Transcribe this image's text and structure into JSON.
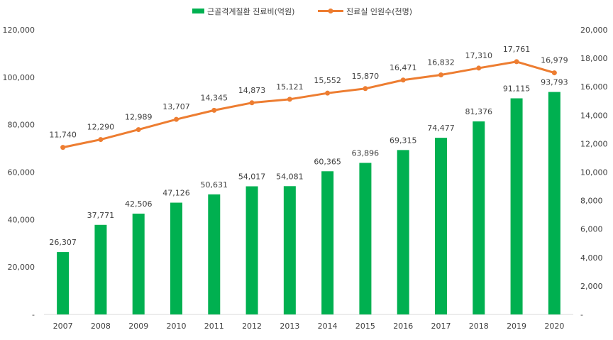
{
  "chart_data": {
    "type": "bar",
    "categories": [
      "2007",
      "2008",
      "2009",
      "2010",
      "2011",
      "2012",
      "2013",
      "2014",
      "2015",
      "2016",
      "2017",
      "2018",
      "2019",
      "2020"
    ],
    "series": [
      {
        "name": "근골격계질환 진료비(억원)",
        "type": "bar",
        "axis": "left",
        "color": "#00B050",
        "values": [
          26307,
          37771,
          42506,
          47126,
          50631,
          54017,
          54081,
          60365,
          63896,
          69315,
          74477,
          81376,
          91115,
          93793
        ],
        "labels": [
          "26,307",
          "37,771",
          "42,506",
          "47,126",
          "50,631",
          "54,017",
          "54,081",
          "60,365",
          "63,896",
          "69,315",
          "74,477",
          "81,376",
          "91,115",
          "93,793"
        ]
      },
      {
        "name": "진료실 인원수(천명)",
        "type": "line",
        "axis": "right",
        "color": "#ED7D31",
        "values": [
          11740,
          12290,
          12989,
          13707,
          14345,
          14873,
          15121,
          15552,
          15870,
          16471,
          16832,
          17310,
          17761,
          16979
        ],
        "labels": [
          "11,740",
          "12,290",
          "12,989",
          "13,707",
          "14,345",
          "14,873",
          "15,121",
          "15,552",
          "15,870",
          "16,471",
          "16,832",
          "17,310",
          "17,761",
          "16,979"
        ]
      }
    ],
    "y_left": {
      "ylim": [
        0,
        120000
      ],
      "ticks": [
        0,
        20000,
        40000,
        60000,
        80000,
        100000,
        120000
      ],
      "tick_labels": [
        "-",
        "20,000",
        "40,000",
        "60,000",
        "80,000",
        "100,000",
        "120,000"
      ]
    },
    "y_right": {
      "ylim": [
        0,
        20000
      ],
      "ticks": [
        0,
        2000,
        4000,
        6000,
        8000,
        10000,
        12000,
        14000,
        16000,
        18000,
        20000
      ],
      "tick_labels": [
        "-",
        "2,000",
        "4,000",
        "6,000",
        "8,000",
        "10,000",
        "12,000",
        "14,000",
        "16,000",
        "18,000",
        "20,000"
      ]
    },
    "title": "",
    "xlabel": "",
    "ylabel": "",
    "grid": false,
    "legend": "top-center"
  }
}
